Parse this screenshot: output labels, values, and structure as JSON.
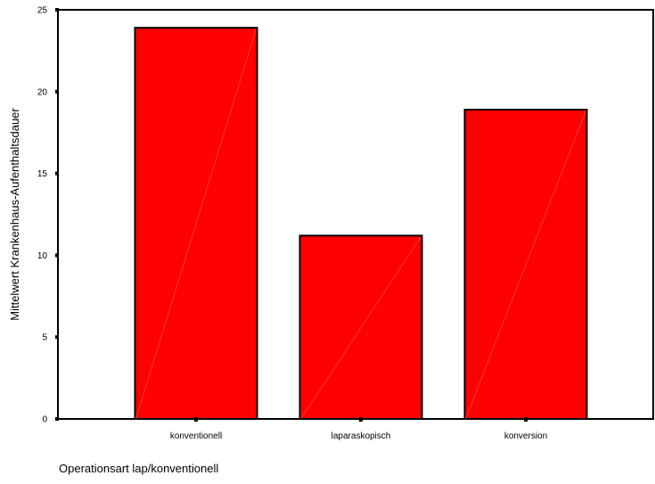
{
  "chart_data": {
    "type": "bar",
    "categories": [
      "konventionell",
      "laparaskopisch",
      "konversion"
    ],
    "values": [
      23.9,
      11.2,
      18.9
    ],
    "xlabel": "Operationsart lap/konventionell",
    "ylabel": "Mittelwert Krankenhaus-Aufenthaltsdauer",
    "ylim": [
      0,
      25
    ],
    "yticks": [
      "0",
      "5",
      "10",
      "15",
      "20",
      "25"
    ],
    "grid": false,
    "bar_color": "#ff0000",
    "bar_outline_color": "#000000"
  }
}
